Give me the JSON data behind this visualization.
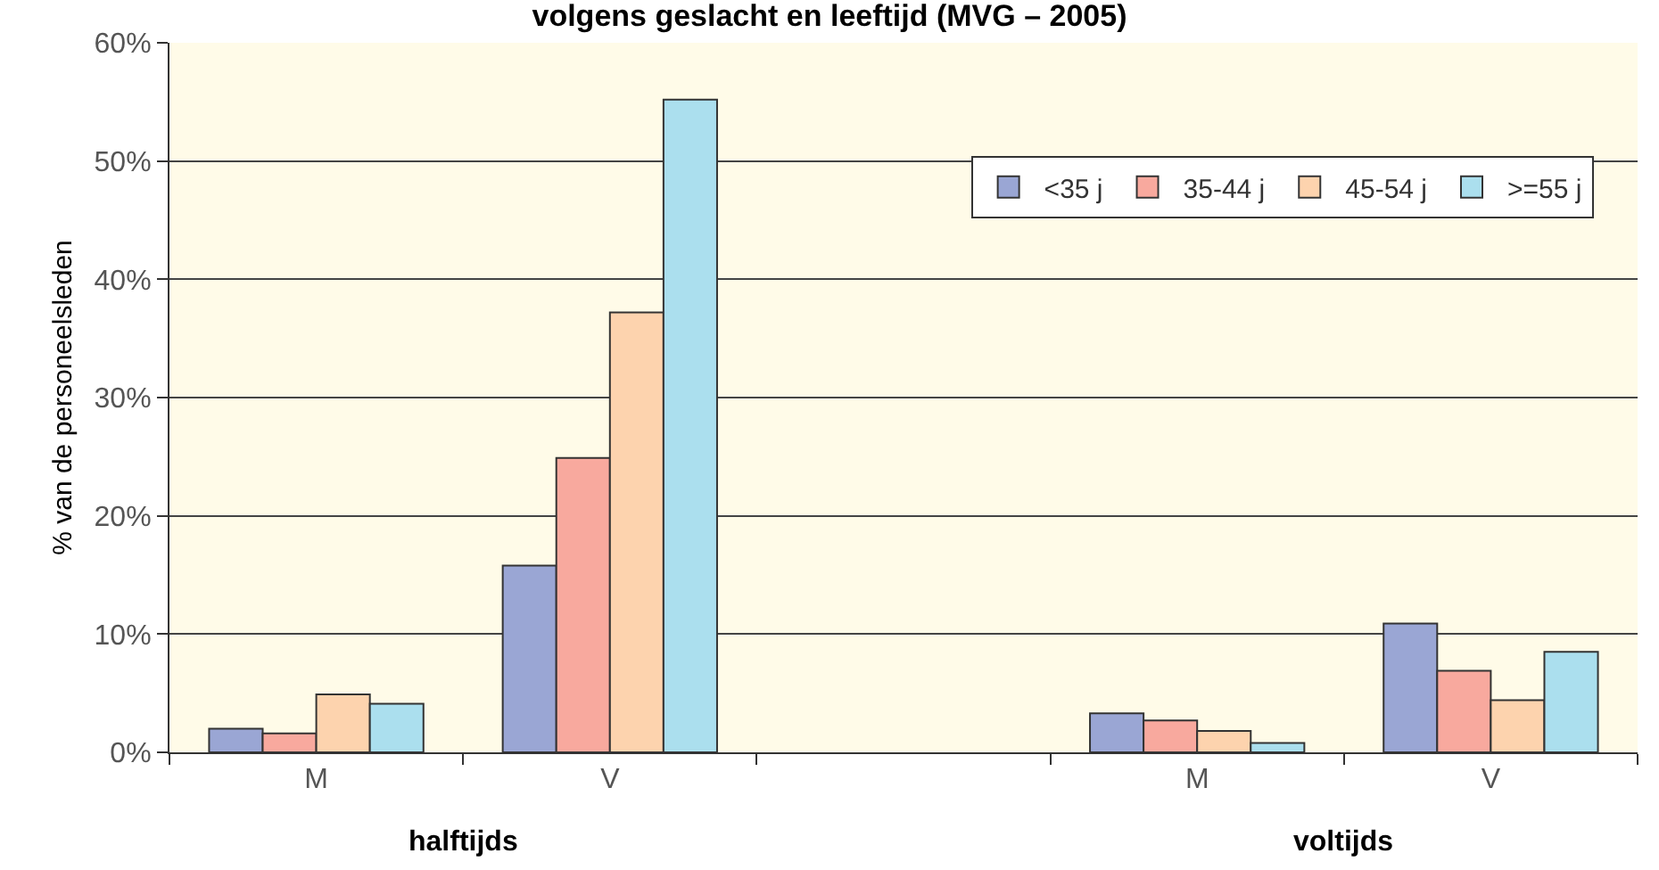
{
  "chart_data": {
    "type": "bar",
    "title": "volgens geslacht en leeftijd (MVG – 2005)",
    "ylabel": "% van de personeelsleden",
    "categories": [
      "M",
      "V",
      null,
      "M",
      "V"
    ],
    "series": [
      {
        "name": "<35 j",
        "color": "#9aa6d4",
        "values": [
          2.0,
          15.8,
          null,
          3.3,
          10.9
        ]
      },
      {
        "name": "35-44 j",
        "color": "#f8a99e",
        "values": [
          1.6,
          24.9,
          null,
          2.7,
          6.9
        ]
      },
      {
        "name": "45-54 j",
        "color": "#fdd3ae",
        "values": [
          4.9,
          37.2,
          null,
          1.8,
          4.4
        ]
      },
      {
        "name": ">=55 j",
        "color": "#abdfee",
        "values": [
          4.1,
          55.2,
          null,
          0.8,
          8.5
        ]
      }
    ],
    "annotations": [
      "halftijds",
      "voltijds"
    ],
    "ylim": [
      0,
      60
    ],
    "yticks": [
      {
        "value": 0,
        "label": "0%"
      },
      {
        "value": 10,
        "label": "10%"
      },
      {
        "value": 20,
        "label": "20%"
      },
      {
        "value": 30,
        "label": "30%"
      },
      {
        "value": 40,
        "label": "40%"
      },
      {
        "value": 50,
        "label": "50%"
      },
      {
        "value": 60,
        "label": "60%"
      }
    ],
    "grid": "y",
    "legend": "top right"
  }
}
